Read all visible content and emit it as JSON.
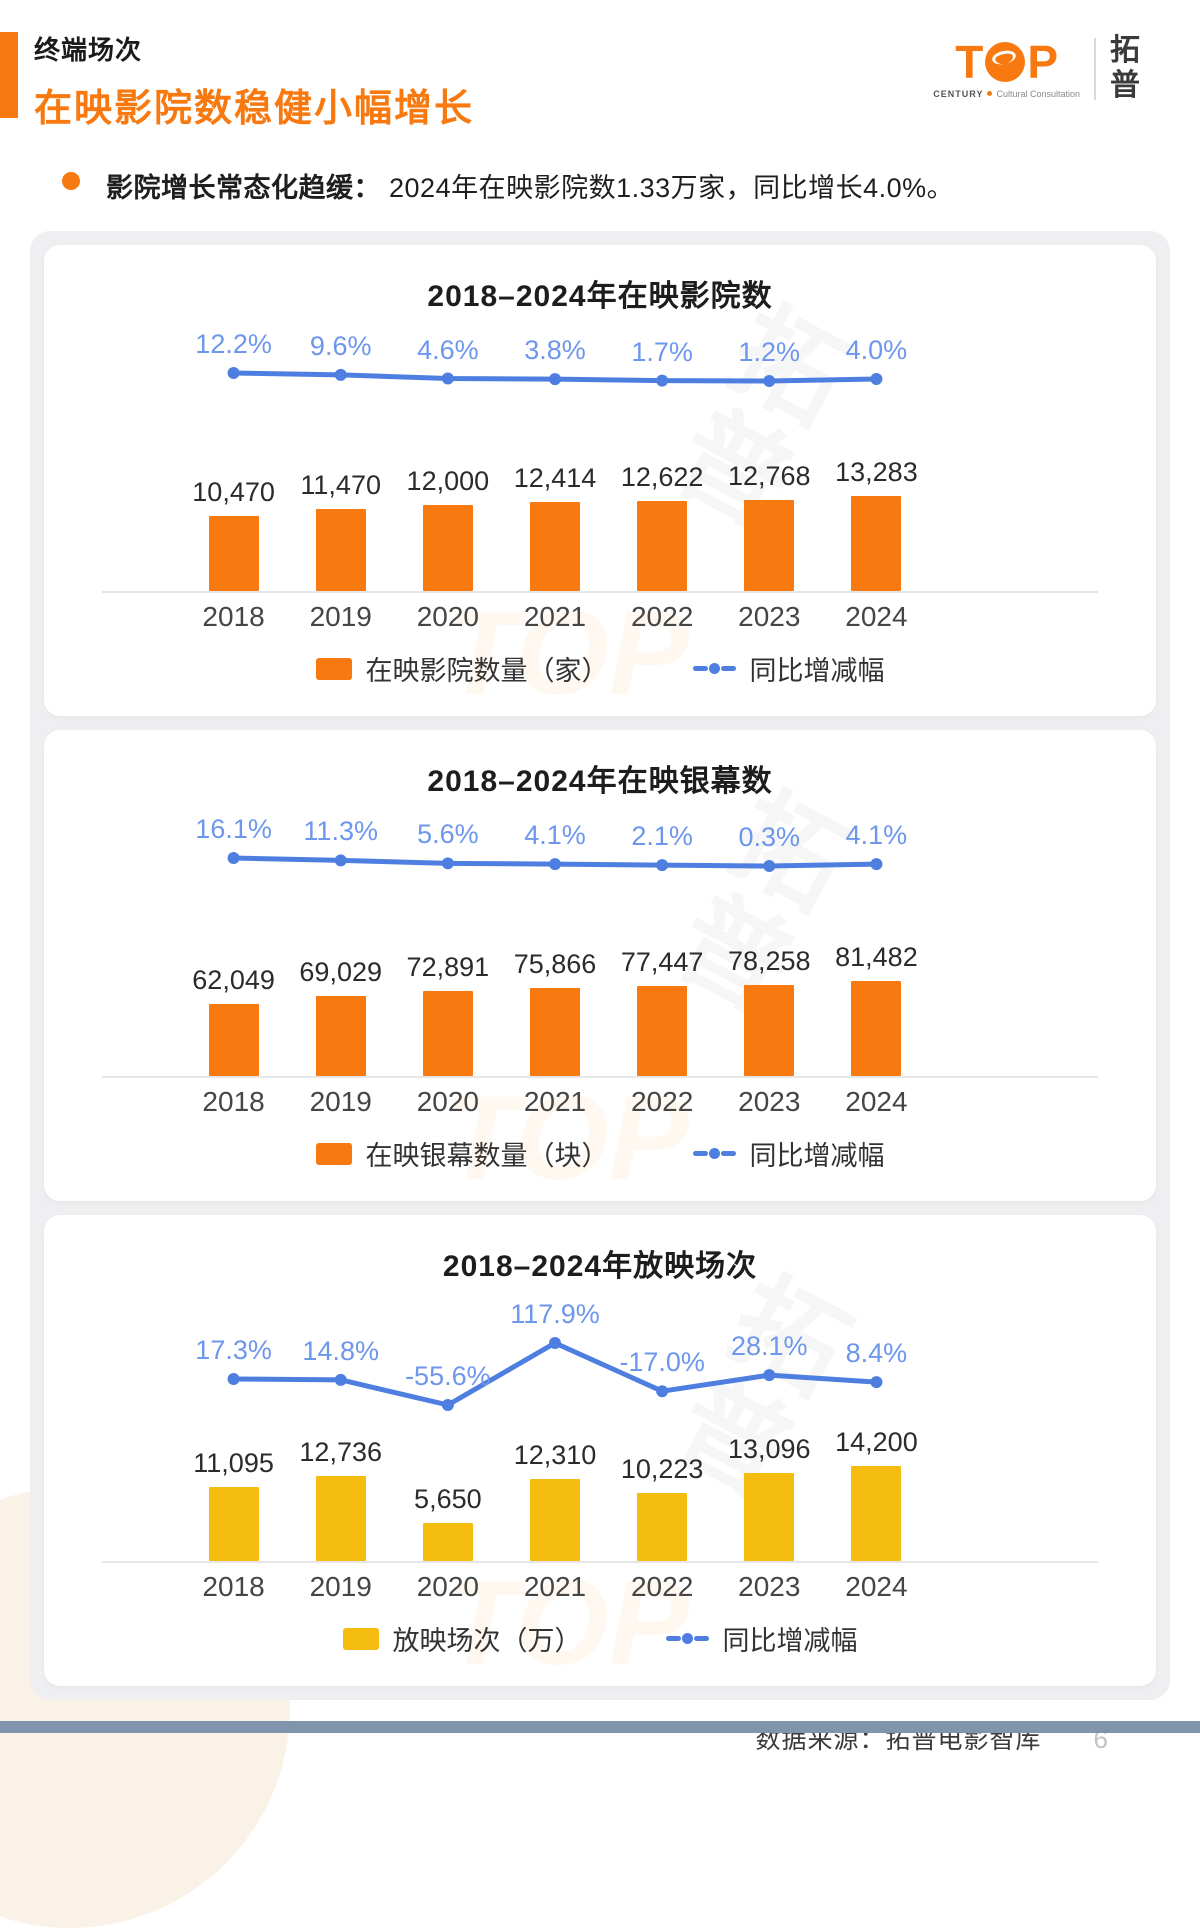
{
  "header": {
    "eyebrow": "终端场次",
    "title": "在映影院数稳健小幅增长"
  },
  "logo": {
    "t": "T",
    "p": "P",
    "century": "CENTURY",
    "subtitle": "Cultural Consultation",
    "cn": "拓普"
  },
  "bullet": {
    "lead": "影院增长常态化趋缓：",
    "text": "2024年在映影院数1.33万家，同比增长4.0%。"
  },
  "footer": {
    "source": "数据来源：拓普电影智库",
    "page": "6"
  },
  "colors": {
    "orange": "#F8790F",
    "yellow": "#F4BC0E",
    "line_blue": "#4E7FE0",
    "pct_blue": "#6D96ED"
  },
  "watermark": {
    "cn": "拓普",
    "en": "TOP"
  },
  "chart_data": [
    {
      "type": "bar",
      "title": "2018–2024年在映影院数",
      "categories": [
        "2018",
        "2019",
        "2020",
        "2021",
        "2022",
        "2023",
        "2024"
      ],
      "series": [
        {
          "name": "在映影院数量（家）",
          "kind": "bar",
          "color": "#F8790F",
          "values": [
            10470,
            11470,
            12000,
            12414,
            12622,
            12768,
            13283
          ],
          "labels": [
            "10,470",
            "11,470",
            "12,000",
            "12,414",
            "12,622",
            "12,768",
            "13,283"
          ]
        },
        {
          "name": "同比增减幅",
          "kind": "line",
          "color": "#4E7FE0",
          "values": [
            12.2,
            9.6,
            4.6,
            3.8,
            1.7,
            1.2,
            4.0
          ],
          "labels": [
            "12.2%",
            "9.6%",
            "4.6%",
            "3.8%",
            "1.7%",
            "1.2%",
            "4.0%"
          ]
        }
      ],
      "legend_position": "bottom",
      "grid": false
    },
    {
      "type": "bar",
      "title": "2018–2024年在映银幕数",
      "categories": [
        "2018",
        "2019",
        "2020",
        "2021",
        "2022",
        "2023",
        "2024"
      ],
      "series": [
        {
          "name": "在映银幕数量（块）",
          "kind": "bar",
          "color": "#F8790F",
          "values": [
            62049,
            69029,
            72891,
            75866,
            77447,
            78258,
            81482
          ],
          "labels": [
            "62,049",
            "69,029",
            "72,891",
            "75,866",
            "77,447",
            "78,258",
            "81,482"
          ]
        },
        {
          "name": "同比增减幅",
          "kind": "line",
          "color": "#4E7FE0",
          "values": [
            16.1,
            11.3,
            5.6,
            4.1,
            2.1,
            0.3,
            4.1
          ],
          "labels": [
            "16.1%",
            "11.3%",
            "5.6%",
            "4.1%",
            "2.1%",
            "0.3%",
            "4.1%"
          ]
        }
      ],
      "legend_position": "bottom",
      "grid": false
    },
    {
      "type": "bar",
      "title": "2018–2024年放映场次",
      "categories": [
        "2018",
        "2019",
        "2020",
        "2021",
        "2022",
        "2023",
        "2024"
      ],
      "series": [
        {
          "name": "放映场次（万）",
          "kind": "bar",
          "color": "#F4BC0E",
          "values": [
            11095,
            12736,
            5650,
            12310,
            10223,
            13096,
            14200
          ],
          "labels": [
            "11,095",
            "12,736",
            "5,650",
            "12,310",
            "10,223",
            "13,096",
            "14,200"
          ]
        },
        {
          "name": "同比增减幅",
          "kind": "line",
          "color": "#4E7FE0",
          "values": [
            17.3,
            14.8,
            -55.6,
            117.9,
            -17.0,
            28.1,
            8.4
          ],
          "labels": [
            "17.3%",
            "14.8%",
            "-55.6%",
            "117.9%",
            "-17.0%",
            "28.1%",
            "8.4%"
          ]
        }
      ],
      "legend_position": "bottom",
      "grid": false
    }
  ]
}
